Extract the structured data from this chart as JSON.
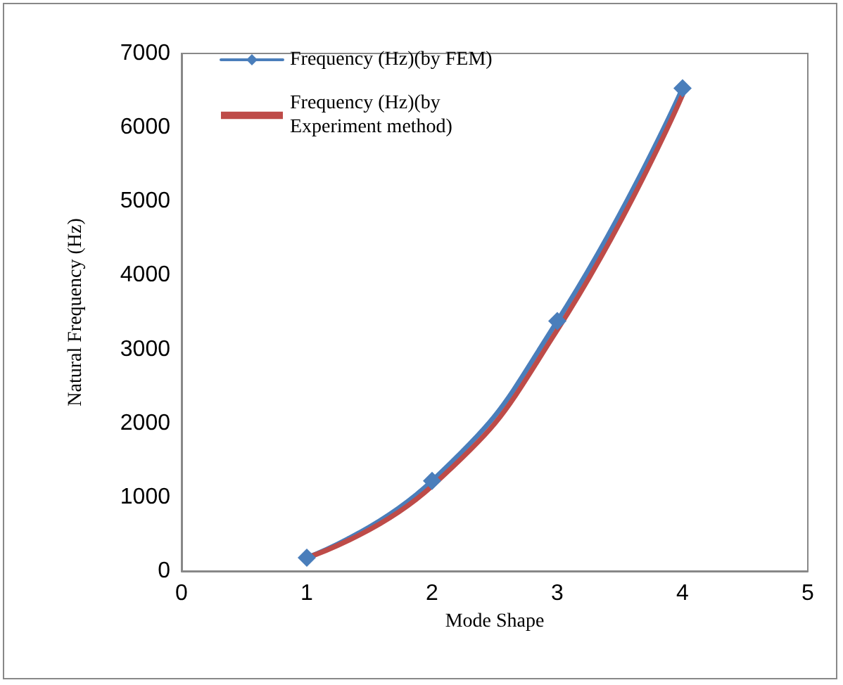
{
  "chart_data": {
    "type": "line",
    "xlabel": "Mode Shape",
    "ylabel": "Natural Frequency (Hz)",
    "x": [
      1,
      2,
      3,
      4
    ],
    "xlim": [
      0,
      5
    ],
    "xticks": [
      0,
      1,
      2,
      3,
      4,
      5
    ],
    "ylim": [
      0,
      7000
    ],
    "yticks": [
      0,
      1000,
      2000,
      3000,
      4000,
      5000,
      6000,
      7000
    ],
    "grid": false,
    "legend": "top left",
    "series": [
      {
        "name": "Frequency (Hz)(by FEM)",
        "color": "#4a7ebb",
        "values": [
          180,
          1220,
          3380,
          6530
        ],
        "marker": "diamond"
      },
      {
        "name": "Frequency (Hz)(by\nExperiment method)",
        "color": "#be4b48",
        "values": [
          180,
          1150,
          3260,
          6440
        ],
        "marker": "none"
      }
    ]
  }
}
